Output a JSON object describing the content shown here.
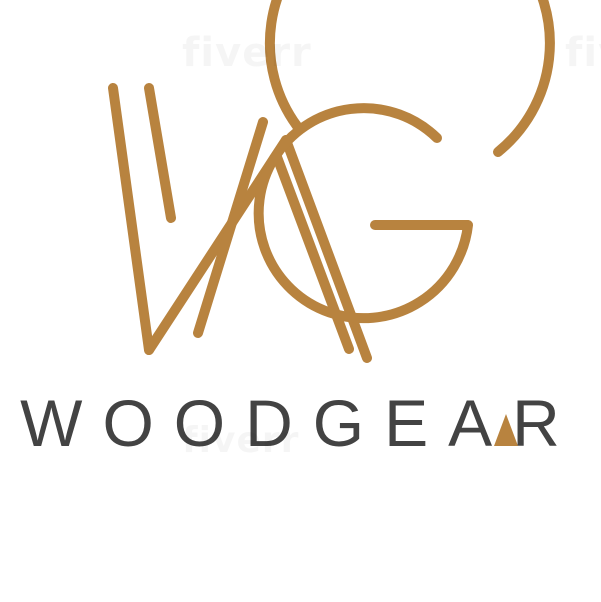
{
  "logo": {
    "monogram": "WG",
    "wordmark": "WOODGEAR"
  },
  "watermark": {
    "text": "fiverr"
  },
  "colors": {
    "gold": "#B8833F",
    "charcoal": "#434343",
    "background": "#FFFFFF"
  }
}
